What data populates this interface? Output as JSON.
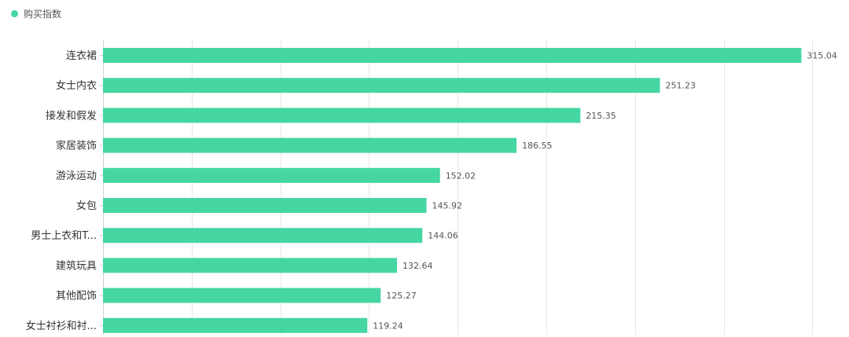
{
  "legend": {
    "label": "购买指数",
    "color": "#45D6A1"
  },
  "chart_data": {
    "type": "bar",
    "orientation": "horizontal",
    "categories": [
      "连衣裙",
      "女士内衣",
      "接发和假发",
      "家居装饰",
      "游泳运动",
      "女包",
      "男士上衣和T...",
      "建筑玩具",
      "其他配饰",
      "女士衬衫和衬..."
    ],
    "series": [
      {
        "name": "购买指数",
        "values": [
          315.04,
          251.23,
          215.35,
          186.55,
          152.02,
          145.92,
          144.06,
          132.64,
          125.27,
          119.24
        ]
      }
    ],
    "xlim": [
      0,
      320
    ],
    "grid": true,
    "legend_position": "top-left",
    "bar_color": "#45D6A1"
  }
}
